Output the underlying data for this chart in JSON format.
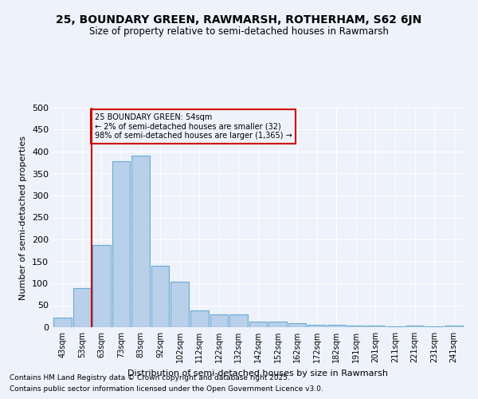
{
  "title1": "25, BOUNDARY GREEN, RAWMARSH, ROTHERHAM, S62 6JN",
  "title2": "Size of property relative to semi-detached houses in Rawmarsh",
  "xlabel": "Distribution of semi-detached houses by size in Rawmarsh",
  "ylabel": "Number of semi-detached properties",
  "categories": [
    "43sqm",
    "53sqm",
    "63sqm",
    "73sqm",
    "83sqm",
    "92sqm",
    "102sqm",
    "112sqm",
    "122sqm",
    "132sqm",
    "142sqm",
    "152sqm",
    "162sqm",
    "172sqm",
    "182sqm",
    "191sqm",
    "201sqm",
    "211sqm",
    "221sqm",
    "231sqm",
    "241sqm"
  ],
  "values": [
    22,
    90,
    188,
    378,
    390,
    140,
    103,
    38,
    30,
    30,
    12,
    12,
    9,
    6,
    6,
    4,
    4,
    1,
    4,
    1,
    4
  ],
  "bar_color": "#b8d0ea",
  "bar_edge_color": "#6aaad4",
  "vline_x_index": 1,
  "vline_color": "#cc0000",
  "annotation_text": "25 BOUNDARY GREEN: 54sqm\n← 2% of semi-detached houses are smaller (32)\n98% of semi-detached houses are larger (1,365) →",
  "annotation_box_edgecolor": "#cc0000",
  "background_color": "#eef2fb",
  "grid_color": "#ffffff",
  "yticks": [
    0,
    50,
    100,
    150,
    200,
    250,
    300,
    350,
    400,
    450,
    500
  ],
  "ylim": [
    0,
    500
  ],
  "footer1": "Contains HM Land Registry data © Crown copyright and database right 2025.",
  "footer2": "Contains public sector information licensed under the Open Government Licence v3.0."
}
